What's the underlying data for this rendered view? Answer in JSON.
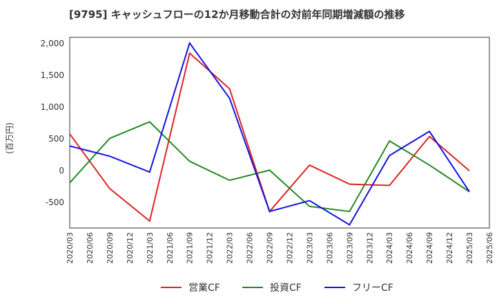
{
  "chart_data": {
    "type": "line",
    "title": "[9795]  キャッシュフローの12か月移動合計の対前年同期増減額の推移",
    "ylabel": "(百万円)",
    "xlabel": "",
    "ylim": [
      -900,
      2100
    ],
    "yticks": [
      -500,
      0,
      500,
      1000,
      1500,
      2000
    ],
    "ytick_labels": [
      "-500",
      "0",
      "500",
      "1,000",
      "1,500",
      "2,000"
    ],
    "x_categories": [
      "2020/03",
      "2020/06",
      "2020/09",
      "2020/12",
      "2021/03",
      "2021/06",
      "2021/09",
      "2021/12",
      "2022/03",
      "2022/06",
      "2022/09",
      "2022/12",
      "2023/03",
      "2023/06",
      "2023/09",
      "2023/12",
      "2024/03",
      "2024/06",
      "2024/09",
      "2024/12",
      "2025/03",
      "2025/06"
    ],
    "grid": true,
    "legend_position": "bottom",
    "series": [
      {
        "name": "営業CF",
        "color": "#dd2222",
        "x": [
          "2020/03",
          "2020/09",
          "2021/03",
          "2021/09",
          "2022/03",
          "2022/09",
          "2023/03",
          "2023/09",
          "2024/03",
          "2024/09",
          "2025/03"
        ],
        "values": [
          580,
          -280,
          -790,
          1850,
          1290,
          -640,
          90,
          -210,
          -230,
          540,
          0
        ]
      },
      {
        "name": "投資CF",
        "color": "#228822",
        "x": [
          "2020/03",
          "2020/09",
          "2021/03",
          "2021/09",
          "2022/03",
          "2022/09",
          "2023/03",
          "2023/09",
          "2024/03",
          "2024/09",
          "2025/03"
        ],
        "values": [
          -190,
          510,
          770,
          150,
          -150,
          10,
          -560,
          -640,
          470,
          90,
          -330
        ]
      },
      {
        "name": "フリーCF",
        "color": "#1111dd",
        "x": [
          "2020/03",
          "2020/09",
          "2021/03",
          "2021/09",
          "2022/03",
          "2022/09",
          "2023/03",
          "2023/09",
          "2024/03",
          "2024/09",
          "2025/03"
        ],
        "values": [
          390,
          230,
          -20,
          2010,
          1140,
          -640,
          -470,
          -850,
          240,
          620,
          -330
        ]
      }
    ]
  }
}
